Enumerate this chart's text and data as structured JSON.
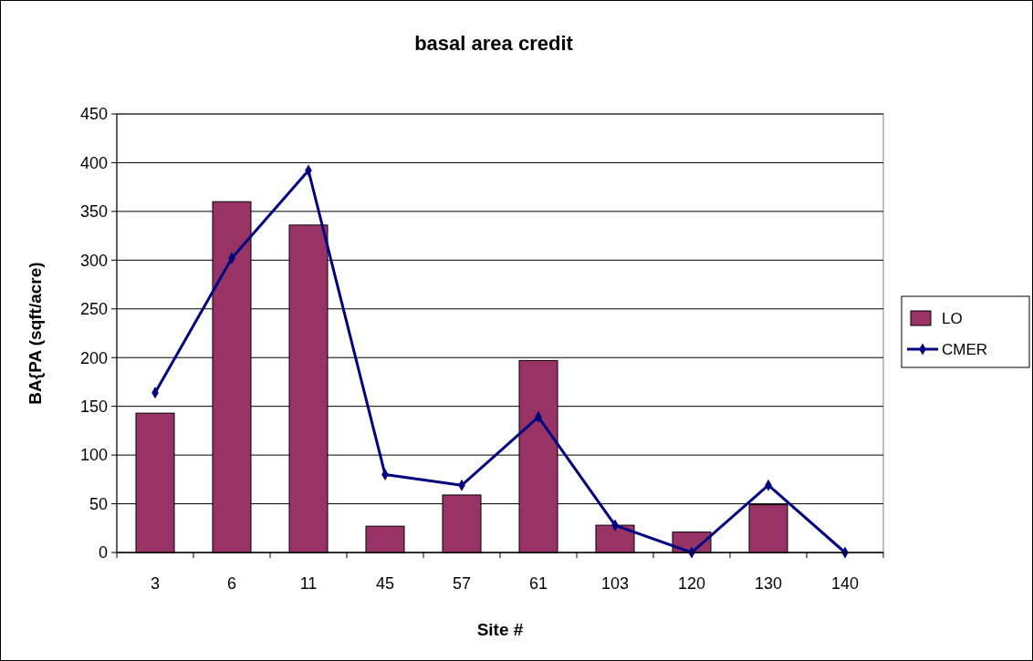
{
  "chart_data": {
    "type": "bar",
    "title": "basal area credit",
    "xlabel": "Site #",
    "ylabel": "BA{PA (sqft/acre)",
    "categories": [
      "3",
      "6",
      "11",
      "45",
      "57",
      "61",
      "103",
      "120",
      "130",
      "140"
    ],
    "series": [
      {
        "name": "LO",
        "color": "#993366",
        "values": [
          143,
          360,
          336,
          27,
          59,
          197,
          28,
          21,
          49,
          0
        ]
      },
      {
        "name": "CMER",
        "type": "line",
        "color": "#000080",
        "values": [
          164,
          302,
          392,
          80,
          69,
          139,
          28,
          0,
          69,
          0
        ],
        "marker": "diamond"
      }
    ],
    "ylim": [
      0,
      450
    ],
    "yticks": [
      0,
      50,
      100,
      150,
      200,
      250,
      300,
      350,
      400,
      450
    ],
    "grid": "y",
    "legend": "right"
  }
}
